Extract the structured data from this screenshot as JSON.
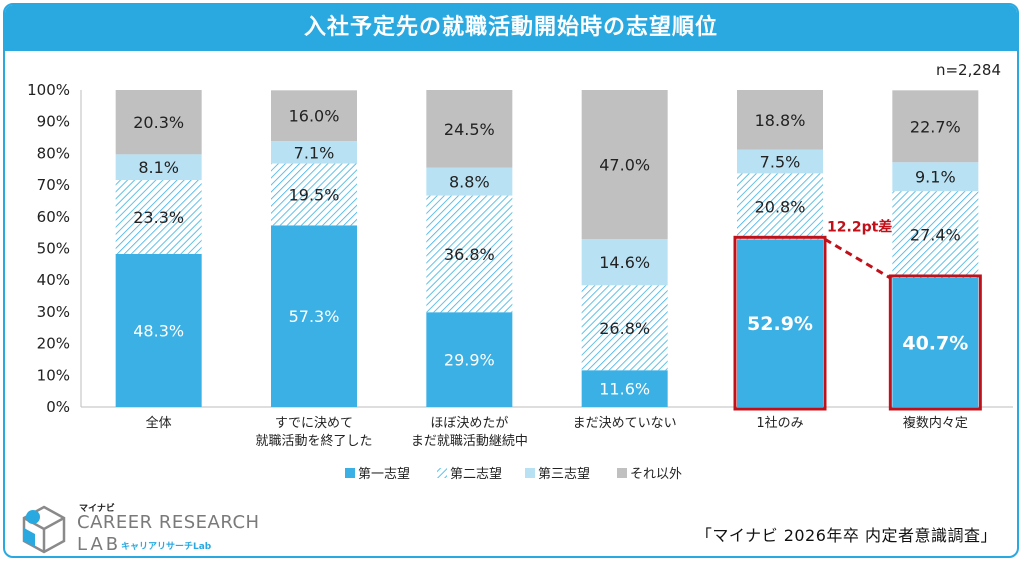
{
  "header": {
    "title": "入社予定先の就職活動開始時の志望順位"
  },
  "sample_size": "n=2,284",
  "source": "「マイナビ 2026年卒 内定者意識調査」",
  "logo": {
    "top": "マイナビ",
    "main": "CAREER RESEARCH",
    "lab": "LAB",
    "kana": "キャリアリサーチLab"
  },
  "chart_data": {
    "type": "bar",
    "stacked": true,
    "percent": true,
    "categories": [
      [
        "全体"
      ],
      [
        "すでに決めて",
        "就職活動を終了した"
      ],
      [
        "ほぼ決めたが",
        "まだ就職活動継続中"
      ],
      [
        "まだ決めていない"
      ],
      [
        "1社のみ"
      ],
      [
        "複数内々定"
      ]
    ],
    "series": [
      {
        "name": "第一志望",
        "values": [
          48.3,
          57.3,
          29.9,
          11.6,
          52.9,
          40.7
        ],
        "color": "#3ab0e4",
        "pattern": "solid"
      },
      {
        "name": "第二志望",
        "values": [
          23.3,
          19.5,
          36.8,
          26.8,
          20.8,
          27.4
        ],
        "color": "#3ab0e4",
        "pattern": "hatch"
      },
      {
        "name": "第三志望",
        "values": [
          8.1,
          7.1,
          8.8,
          14.6,
          7.5,
          9.1
        ],
        "color": "#b8e2f4",
        "pattern": "solid"
      },
      {
        "name": "それ以外",
        "values": [
          20.3,
          16.0,
          24.5,
          47.0,
          18.8,
          22.7
        ],
        "color": "#c0c0c0",
        "pattern": "solid"
      }
    ],
    "ylim": [
      0,
      100
    ],
    "yticks": [
      "0%",
      "10%",
      "20%",
      "30%",
      "40%",
      "50%",
      "60%",
      "70%",
      "80%",
      "90%",
      "100%"
    ],
    "highlighted_categories": [
      4,
      5
    ],
    "highlight_color": "#c0101a",
    "annotation": {
      "text": "12.2pt差",
      "from_category": 4,
      "to_category": 5
    },
    "legend_position": "bottom",
    "grid": false
  }
}
